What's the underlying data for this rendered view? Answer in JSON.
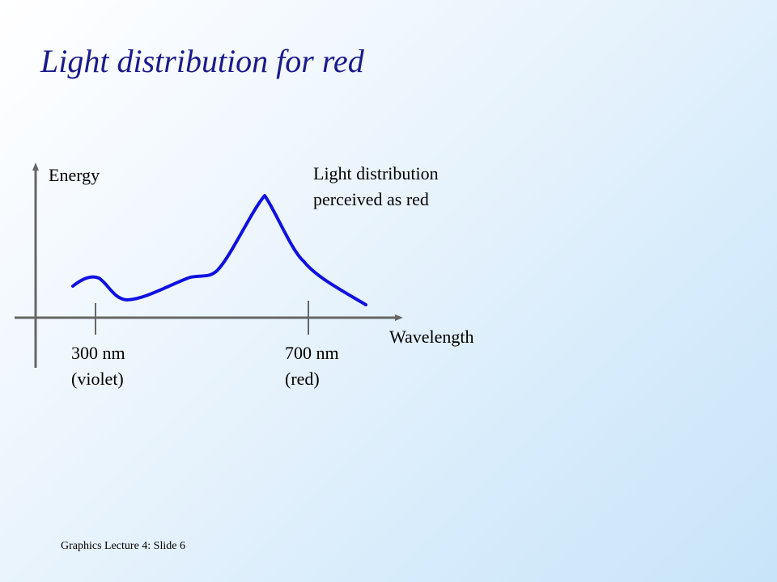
{
  "slide": {
    "title": "Light distribution for red",
    "footer": "Graphics Lecture 4:  Slide 6"
  },
  "diagram": {
    "y_axis_label": "Energy",
    "x_axis_label": "Wavelength",
    "caption_lines": [
      "Light distribution",
      "perceived as red"
    ],
    "ticks": [
      {
        "value": "300 nm",
        "note": "(violet)"
      },
      {
        "value": "700 nm",
        "note": "(red)"
      }
    ],
    "colors": {
      "curve": "#1010e0",
      "axes": "#666666",
      "title": "#1a1a8c"
    }
  }
}
